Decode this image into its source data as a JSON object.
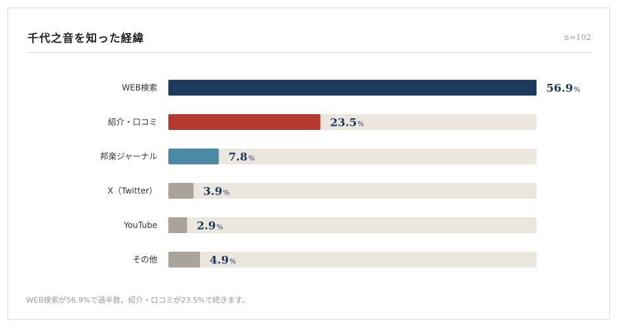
{
  "header": {
    "title": "千代之音を知った経緯",
    "sample_size": "n=102"
  },
  "footnote": "WEB検索が56.9%で過半数。紹介・口コミが23.5%で続きます。",
  "colors": {
    "track": "#ece7de",
    "primary": "#1c3a5e",
    "secondary": "#b53a30",
    "tertiary": "#4a8aa5",
    "other": "#aaa39b"
  },
  "chart_data": {
    "type": "bar",
    "orientation": "horizontal",
    "categories": [
      "WEB検索",
      "紹介・口コミ",
      "邦楽ジャーナル",
      "X（Twitter）",
      "YouTube",
      "その他"
    ],
    "values": [
      56.9,
      23.5,
      7.8,
      3.9,
      2.9,
      4.9
    ],
    "value_labels": [
      "56.9",
      "23.5",
      "7.8",
      "3.9",
      "2.9",
      "4.9"
    ],
    "value_unit": "%",
    "bar_colors": [
      "#1c3a5e",
      "#b53a30",
      "#4a8aa5",
      "#aaa39b",
      "#aaa39b",
      "#aaa39b"
    ],
    "xlim": [
      0,
      56.9
    ],
    "grid": false,
    "title": "千代之音を知った経緯"
  }
}
